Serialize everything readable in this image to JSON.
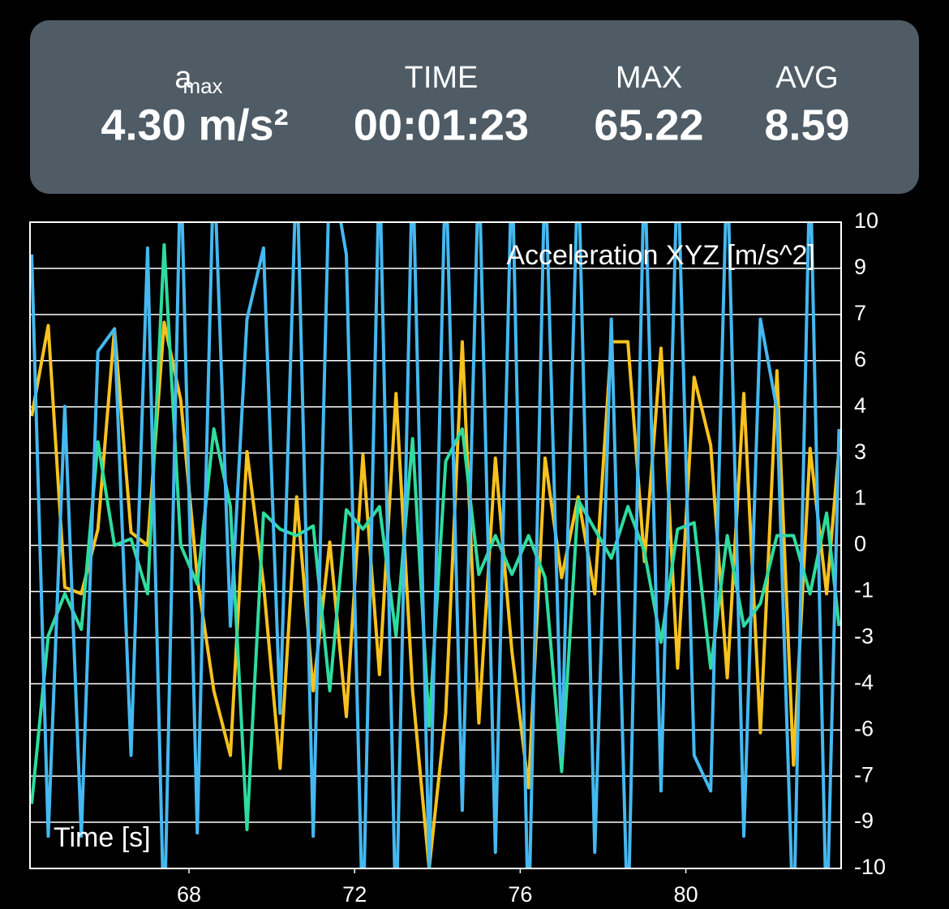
{
  "header": {
    "stats": [
      {
        "symbol": "a",
        "subscript": "max",
        "value": "4.30 m/s²"
      },
      {
        "label": "TIME",
        "value": "00:01:23"
      },
      {
        "label": "MAX",
        "value": "65.22"
      },
      {
        "label": "AVG",
        "value": "8.59"
      }
    ]
  },
  "chart_data": {
    "type": "line",
    "title": "Acceleration XYZ [m/s^2]",
    "x_label": "Time [s]",
    "x": [
      64.2,
      64.6,
      65.0,
      65.4,
      65.8,
      66.2,
      66.6,
      67.0,
      67.4,
      67.8,
      68.2,
      68.6,
      69.0,
      69.4,
      69.8,
      70.2,
      70.6,
      71.0,
      71.4,
      71.8,
      72.2,
      72.6,
      73.0,
      73.4,
      73.8,
      74.2,
      74.6,
      75.0,
      75.4,
      75.8,
      76.2,
      76.6,
      77.0,
      77.4,
      77.8,
      78.2,
      78.6,
      79.0,
      79.4,
      79.8,
      80.2,
      80.6,
      81.0,
      81.4,
      81.8,
      82.2,
      82.6,
      83.0,
      83.4,
      83.7
    ],
    "series": [
      {
        "color": "#f7c21e",
        "values": [
          4,
          6.8,
          -1.3,
          -1.5,
          0.5,
          6.7,
          0.4,
          0,
          6.9,
          4.5,
          -1,
          -4.5,
          -6.5,
          2.9,
          -1.2,
          -6.9,
          1.5,
          -4.5,
          0.1,
          -5.3,
          2.8,
          -4,
          4.7,
          -4.5,
          -10,
          -5.2,
          6.3,
          -5.5,
          2.7,
          -3.3,
          -7.5,
          2.7,
          -1,
          1.5,
          -1.5,
          6.3,
          6.3,
          -0.5,
          6.1,
          -3.8,
          5.2,
          3.1,
          -4.1,
          4.7,
          -5.8,
          5.4,
          -6.8,
          3,
          -1.5,
          3
        ]
      },
      {
        "color": "#2edc9e",
        "values": [
          -8,
          -2.8,
          -1.5,
          -2.6,
          3.2,
          0,
          0.2,
          -1.5,
          9.3,
          0,
          -1.2,
          3.6,
          1.2,
          -8.8,
          1,
          0.5,
          0.3,
          0.6,
          -4.5,
          1.1,
          0.5,
          1.2,
          -2.8,
          3.3,
          -5.6,
          2.6,
          3.6,
          -0.9,
          0.3,
          -0.9,
          0.3,
          -1,
          -7,
          1.4,
          0.5,
          -0.4,
          1.2,
          -0.2,
          -3,
          0.5,
          0.7,
          -3.8,
          0.3,
          -2.5,
          -1.8,
          0.3,
          0.3,
          -1.5,
          1,
          -2.5
        ]
      },
      {
        "color": "#45b8ef",
        "values": [
          9,
          -9,
          4.3,
          -9,
          6,
          6.7,
          -6.5,
          9.2,
          -12,
          12,
          -8.9,
          12,
          -2.5,
          7,
          9.2,
          -5.2,
          12,
          -9,
          12,
          9,
          -12,
          12,
          -12,
          12,
          -10,
          12,
          -8.2,
          12,
          -9.5,
          12,
          -12,
          12,
          -6.5,
          12,
          -9.5,
          7,
          -12,
          12,
          -7.6,
          12,
          -6.5,
          -7.6,
          12,
          -9,
          7,
          4.2,
          -12,
          12,
          -12,
          3.6
        ]
      }
    ],
    "xlim": [
      64.16,
      83.75
    ],
    "xticks": [
      68,
      72,
      76,
      80
    ],
    "ylim": [
      -10,
      10
    ],
    "yticks": [
      10,
      {
        "value": 8.571,
        "label": "9"
      },
      {
        "value": 7.143,
        "label": "7"
      },
      {
        "value": 5.714,
        "label": "6"
      },
      {
        "value": 4.286,
        "label": "4"
      },
      {
        "value": 2.857,
        "label": "3"
      },
      {
        "value": 1.429,
        "label": "1"
      },
      0,
      {
        "value": -1.429,
        "label": "-1"
      },
      {
        "value": -2.857,
        "label": "-3"
      },
      {
        "value": -4.286,
        "label": "-4"
      },
      {
        "value": -5.714,
        "label": "-6"
      },
      {
        "value": -7.143,
        "label": "-7"
      },
      {
        "value": -8.571,
        "label": "-9"
      },
      -10
    ],
    "grid": true
  }
}
